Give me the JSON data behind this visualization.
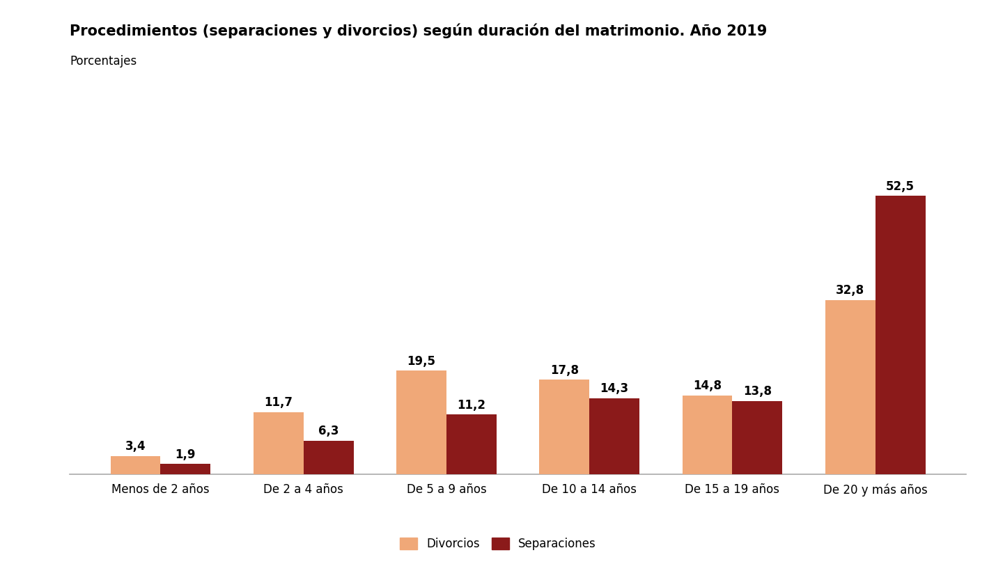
{
  "title": "Procedimientos (separaciones y divorcios) según duración del matrimonio. Año 2019",
  "subtitle": "Porcentajes",
  "categories": [
    "Menos de 2 años",
    "De 2 a 4 años",
    "De 5 a 9 años",
    "De 10 a 14 años",
    "De 15 a 19 años",
    "De 20 y más años"
  ],
  "divorcios": [
    3.4,
    11.7,
    19.5,
    17.8,
    14.8,
    32.8
  ],
  "separaciones": [
    1.9,
    6.3,
    11.2,
    14.3,
    13.8,
    52.5
  ],
  "color_divorcios": "#F0A878",
  "color_separaciones": "#8B1A1A",
  "bar_width": 0.35,
  "ylim": [
    0,
    60
  ],
  "legend_divorcios": "Divorcios",
  "legend_separaciones": "Separaciones",
  "title_fontsize": 15,
  "subtitle_fontsize": 12,
  "tick_fontsize": 12,
  "value_fontsize": 12,
  "legend_fontsize": 12,
  "background_color": "#FFFFFF"
}
